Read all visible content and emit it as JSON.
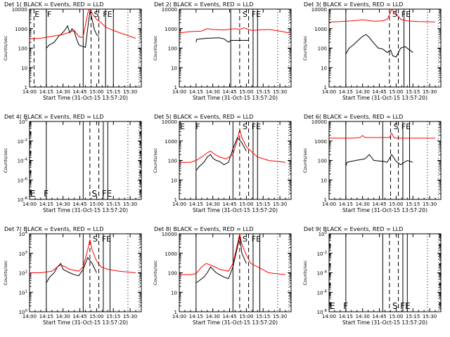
{
  "common": {
    "xlabel": "Start Time (31-Oct-15 13:57:20)",
    "ylabel": "Counts/sec",
    "xticks": [
      "14:00",
      "14:15",
      "14:30",
      "14:45",
      "15:00",
      "15:15",
      "15:30"
    ],
    "xrange_min": [
      0,
      100
    ],
    "line_colors": {
      "events": "#000000",
      "lld": "#ff0000"
    }
  },
  "chart_data": [
    {
      "type": "line",
      "title": "Det 1( BLACK = Events, RED = LLD",
      "y_axis": "log",
      "yrange": [
        1,
        10000
      ],
      "ytick_labels": [
        "1",
        "10",
        "100",
        "1000",
        "10000"
      ],
      "markers": [
        {
          "label": "E",
          "x": 4
        },
        {
          "label": "F",
          "x": 15
        },
        {
          "label": "S",
          "x": 57
        },
        {
          "label": "FE",
          "x": 65
        }
      ],
      "series": [
        {
          "name": "Events",
          "color": "#000000",
          "x": [
            15,
            18,
            20,
            22,
            24,
            26,
            28,
            30,
            32,
            34,
            36,
            38,
            40,
            42,
            44,
            46,
            48,
            50,
            52,
            54,
            56,
            58,
            60,
            62
          ],
          "y": [
            100,
            150,
            170,
            200,
            280,
            400,
            500,
            650,
            900,
            1400,
            600,
            1000,
            700,
            300,
            150,
            130,
            120,
            110,
            1000,
            8000,
            3000,
            900,
            500,
            400
          ]
        },
        {
          "name": "LLD",
          "color": "#ff0000",
          "x": [
            0,
            10,
            20,
            30,
            40,
            44,
            46,
            48,
            50,
            52,
            53,
            55,
            57,
            60,
            64,
            68,
            75,
            85,
            95
          ],
          "y": [
            300,
            320,
            400,
            500,
            800,
            400,
            350,
            400,
            1500,
            6000,
            10000,
            8000,
            5000,
            3000,
            2000,
            1200,
            800,
            500,
            320
          ]
        }
      ]
    },
    {
      "type": "line",
      "title": "Det 2( BLACK = Events, RED = LLD",
      "y_axis": "log",
      "yrange": [
        1,
        10000
      ],
      "ytick_labels": [
        "1",
        "10",
        "100",
        "1000",
        "10000"
      ],
      "markers": [
        {
          "label": "S",
          "x": 56
        },
        {
          "label": "FE",
          "x": 64
        }
      ],
      "series": [
        {
          "name": "Events",
          "color": "#000000",
          "x": [
            15,
            15.5,
            20,
            25,
            30,
            35,
            40,
            44,
            46,
            52,
            55,
            58,
            60,
            62
          ],
          "y": [
            200,
            280,
            300,
            320,
            330,
            340,
            300,
            200,
            250,
            250,
            250,
            250,
            250,
            250
          ]
        },
        {
          "name": "LLD",
          "color": "#ff0000",
          "x": [
            0,
            10,
            20,
            25,
            30,
            40,
            50,
            54,
            58,
            62,
            65,
            70,
            80,
            90,
            98
          ],
          "y": [
            600,
            700,
            750,
            1000,
            900,
            850,
            1000,
            900,
            1100,
            900,
            800,
            850,
            900,
            750,
            600
          ]
        }
      ]
    },
    {
      "type": "line",
      "title": "Det 3( BLACK = Events, RED = LLD",
      "y_axis": "log",
      "yrange": [
        1,
        10000
      ],
      "ytick_labels": [
        "1",
        "10",
        "100",
        "1000",
        "10000"
      ],
      "markers": [
        {
          "label": "S",
          "x": 56
        },
        {
          "label": "FE",
          "x": 64
        }
      ],
      "series": [
        {
          "name": "Events",
          "color": "#000000",
          "x": [
            15,
            18,
            22,
            26,
            30,
            33,
            36,
            40,
            44,
            48,
            52,
            55,
            57,
            60,
            64,
            68,
            72,
            75
          ],
          "y": [
            50,
            100,
            150,
            250,
            400,
            500,
            350,
            180,
            100,
            90,
            60,
            80,
            40,
            35,
            100,
            120,
            80,
            60
          ]
        },
        {
          "name": "LLD",
          "color": "#ff0000",
          "x": [
            0,
            10,
            20,
            30,
            40,
            48,
            52,
            54,
            56,
            60,
            64,
            70,
            80,
            95
          ],
          "y": [
            2200,
            2300,
            2500,
            2800,
            2400,
            2500,
            3000,
            5000,
            10000,
            6000,
            3000,
            2500,
            2300,
            2200
          ]
        }
      ]
    },
    {
      "type": "line",
      "title": "Det 4( BLACK = Events, RED = LLD",
      "y_axis": "log",
      "yrange": [
        1e-08,
        1
      ],
      "ytick_labels": [
        "10^-8",
        "10^-6",
        "10^-4",
        "10^-2",
        "10^0"
      ],
      "markers": [
        {
          "label": "E",
          "x": 0
        },
        {
          "label": "F",
          "x": 12
        },
        {
          "label": "S",
          "x": 55
        },
        {
          "label": "FE",
          "x": 64
        }
      ],
      "series": []
    },
    {
      "type": "line",
      "title": "Det 5( BLACK = Events, RED = LLD",
      "y_axis": "log",
      "yrange": [
        1,
        10000
      ],
      "ytick_labels": [
        "1",
        "10",
        "100",
        "1000",
        "10000"
      ],
      "markers": [
        {
          "label": "E",
          "x": 0
        },
        {
          "label": "F",
          "x": 14
        },
        {
          "label": "S",
          "x": 56
        },
        {
          "label": "FE",
          "x": 64
        }
      ],
      "series": [
        {
          "name": "Events",
          "color": "#000000",
          "x": [
            15,
            18,
            22,
            25,
            28,
            30,
            33,
            36,
            40,
            44,
            48,
            52,
            56,
            60
          ],
          "y": [
            30,
            50,
            80,
            150,
            200,
            130,
            100,
            90,
            60,
            80,
            400,
            1500,
            800,
            300
          ]
        },
        {
          "name": "LLD",
          "color": "#ff0000",
          "x": [
            0,
            10,
            15,
            20,
            25,
            28,
            32,
            36,
            42,
            48,
            52,
            54,
            56,
            60,
            64,
            70,
            80,
            95
          ],
          "y": [
            80,
            80,
            100,
            150,
            250,
            300,
            200,
            150,
            120,
            200,
            1200,
            4000,
            1500,
            500,
            300,
            150,
            100,
            80
          ]
        }
      ]
    },
    {
      "type": "line",
      "title": "Det 6( BLACK = Events, RED = LLD",
      "y_axis": "log",
      "yrange": [
        1,
        10000
      ],
      "ytick_labels": [
        "1",
        "10",
        "100",
        "1000",
        "10000"
      ],
      "markers": [
        {
          "label": "S",
          "x": 57
        },
        {
          "label": "FE",
          "x": 64
        }
      ],
      "series": [
        {
          "name": "Events",
          "color": "#000000",
          "x": [
            15,
            16,
            20,
            24,
            28,
            32,
            36,
            40,
            48,
            52,
            56,
            60,
            64,
            70,
            75
          ],
          "y": [
            50,
            80,
            90,
            100,
            110,
            120,
            200,
            100,
            90,
            80,
            200,
            90,
            60,
            100,
            80
          ]
        },
        {
          "name": "LLD",
          "color": "#ff0000",
          "x": [
            0,
            20,
            28,
            30,
            32,
            40,
            52,
            54,
            56,
            58,
            60,
            70,
            95
          ],
          "y": [
            1400,
            1400,
            1500,
            1900,
            1500,
            1500,
            1500,
            1500,
            2500,
            1500,
            1400,
            1400,
            1400
          ]
        }
      ]
    },
    {
      "type": "line",
      "title": "Det 7( BLACK = Events, RED = LLD",
      "y_axis": "log",
      "yrange": [
        1,
        10000
      ],
      "ytick_labels": [
        "10^0",
        "10^1",
        "10^2",
        "10^3",
        "10^4"
      ],
      "markers": [
        {
          "label": "S",
          "x": 56
        },
        {
          "label": "FE",
          "x": 64
        }
      ],
      "series": [
        {
          "name": "Events",
          "color": "#000000",
          "x": [
            15,
            18,
            22,
            25,
            28,
            30,
            33,
            36,
            40,
            44,
            48,
            52,
            56,
            60
          ],
          "y": [
            30,
            60,
            100,
            200,
            300,
            150,
            120,
            100,
            80,
            70,
            150,
            600,
            300,
            100
          ]
        },
        {
          "name": "LLD",
          "color": "#ff0000",
          "x": [
            0,
            10,
            20,
            25,
            28,
            32,
            36,
            44,
            48,
            52,
            54,
            56,
            60,
            64,
            70,
            80,
            95
          ],
          "y": [
            100,
            100,
            120,
            200,
            250,
            200,
            150,
            120,
            200,
            1500,
            5000,
            1500,
            400,
            200,
            150,
            120,
            100
          ]
        }
      ]
    },
    {
      "type": "line",
      "title": "Det 8( BLACK = Events, RED = LLD",
      "y_axis": "log",
      "yrange": [
        1,
        10000
      ],
      "ytick_labels": [
        "1",
        "10",
        "100",
        "1000",
        "10000"
      ],
      "markers": [
        {
          "label": "S",
          "x": 56
        },
        {
          "label": "FE",
          "x": 64
        }
      ],
      "series": [
        {
          "name": "Events",
          "color": "#000000",
          "x": [
            15,
            18,
            22,
            25,
            28,
            30,
            33,
            36,
            40,
            44,
            48,
            52,
            54,
            56,
            60
          ],
          "y": [
            30,
            40,
            60,
            100,
            200,
            150,
            100,
            80,
            60,
            50,
            200,
            2000,
            8000,
            1000,
            300
          ]
        },
        {
          "name": "LLD",
          "color": "#ff0000",
          "x": [
            0,
            10,
            15,
            20,
            24,
            28,
            32,
            36,
            44,
            48,
            52,
            54,
            56,
            60,
            64,
            70,
            80,
            95
          ],
          "y": [
            80,
            80,
            90,
            200,
            300,
            250,
            200,
            150,
            120,
            300,
            3000,
            10000,
            3000,
            800,
            300,
            200,
            100,
            80
          ]
        }
      ]
    },
    {
      "type": "line",
      "title": "Det 9( BLACK = Events, RED = LLD",
      "y_axis": "log",
      "yrange": [
        1e-08,
        1
      ],
      "ytick_labels": [
        "10^-8",
        "10^-6",
        "10^-4",
        "10^-2",
        "10^0"
      ],
      "markers": [
        {
          "label": "E",
          "x": 0
        },
        {
          "label": "F",
          "x": 12
        },
        {
          "label": "S",
          "x": 56
        },
        {
          "label": "FE",
          "x": 63
        }
      ],
      "series": []
    }
  ]
}
